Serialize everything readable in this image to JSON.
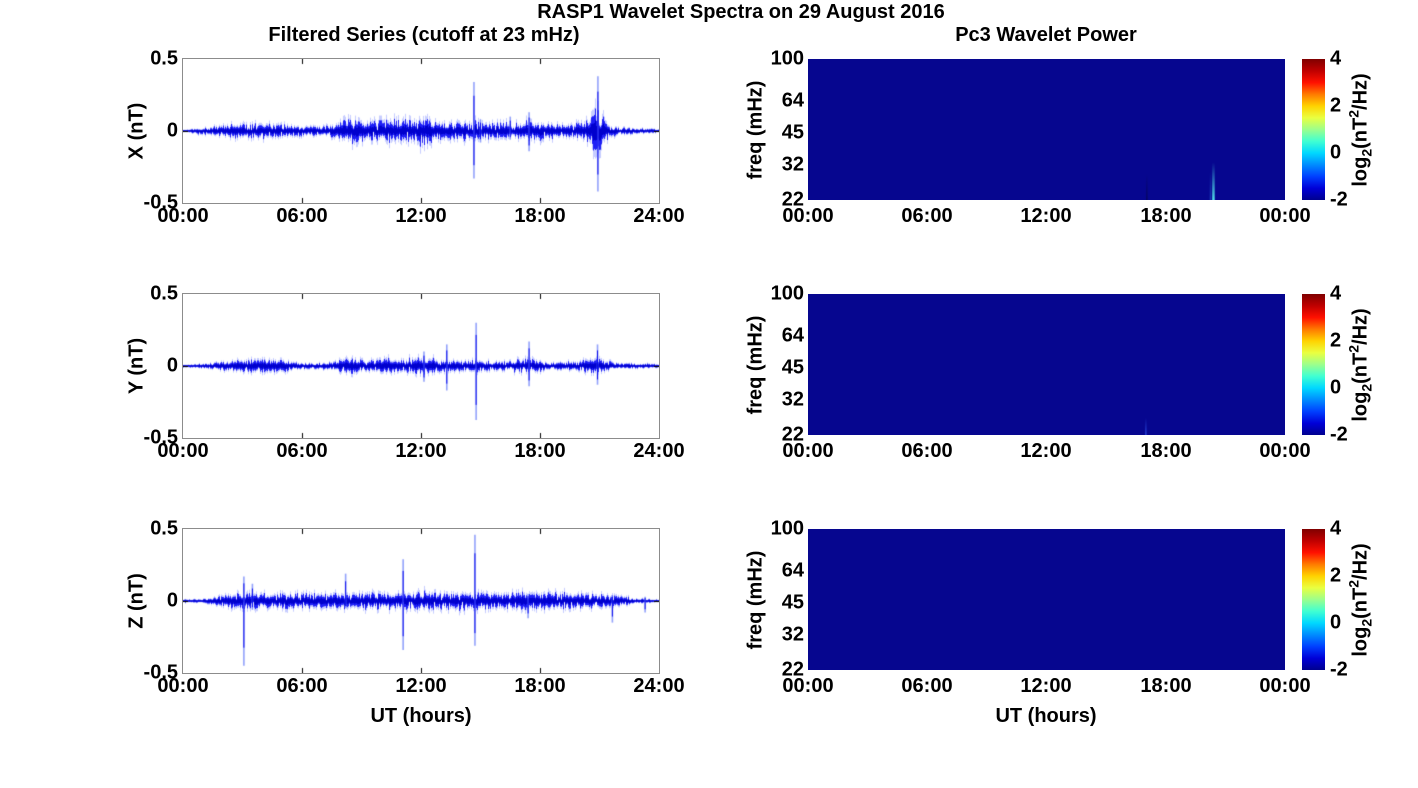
{
  "figure": {
    "title": "RASP1 Wavelet Spectra on 29 August 2016"
  },
  "left_column": {
    "title": "Filtered Series (cutoff at 23 mHz)",
    "xlabel": "UT (hours)",
    "x_ticks": [
      "00:00",
      "06:00",
      "12:00",
      "18:00",
      "24:00"
    ],
    "y_ticks": [
      "0.5",
      "0",
      "-0.5"
    ],
    "panel_ylabels": [
      "X (nT)",
      "Y (nT)",
      "Z (nT)"
    ],
    "series_color": "#0000ee"
  },
  "right_column": {
    "title": "Pc3 Wavelet Power",
    "xlabel": "UT (hours)",
    "x_ticks": [
      "00:00",
      "06:00",
      "12:00",
      "18:00",
      "00:00"
    ],
    "ylabel": "freq (mHz)",
    "freq_ticks": [
      "100",
      "64",
      "45",
      "32",
      "22"
    ],
    "colorbar": {
      "ticks": [
        "4",
        "2",
        "0",
        "-2"
      ],
      "label": {
        "p1": "log",
        "sub": "2",
        "p2": "(nT",
        "sup": "2",
        "p3": "/Hz)"
      },
      "colormap": "jet",
      "gradient_top_to_bottom": [
        "#7f0000",
        "#bf0000",
        "#ff1000",
        "#ff7a00",
        "#ffd200",
        "#eaff40",
        "#9cff8c",
        "#40ffd2",
        "#00d8ff",
        "#008cff",
        "#0040ff",
        "#0000d8",
        "#00008f"
      ]
    }
  },
  "chart_data": [
    {
      "panel": "X filtered series",
      "type": "line",
      "color": "#0000ee",
      "seed": 11,
      "xlim_hours": [
        0,
        24
      ],
      "ylim_nT": [
        -0.5,
        0.5
      ],
      "envelope_t_amp": [
        [
          0,
          0.008
        ],
        [
          0.5,
          0.015
        ],
        [
          1,
          0.022
        ],
        [
          1.8,
          0.03
        ],
        [
          2.6,
          0.045
        ],
        [
          3.3,
          0.05
        ],
        [
          4.2,
          0.048
        ],
        [
          5,
          0.042
        ],
        [
          5.8,
          0.035
        ],
        [
          6.5,
          0.032
        ],
        [
          7.3,
          0.04
        ],
        [
          7.9,
          0.05
        ],
        [
          8.2,
          0.09
        ],
        [
          8.75,
          0.085
        ],
        [
          9.3,
          0.05
        ],
        [
          9.7,
          0.075
        ],
        [
          10.3,
          0.09
        ],
        [
          10.9,
          0.07
        ],
        [
          11.4,
          0.08
        ],
        [
          12,
          0.09
        ],
        [
          12.6,
          0.08
        ],
        [
          13.2,
          0.055
        ],
        [
          14,
          0.06
        ],
        [
          14.7,
          0.065
        ],
        [
          15.3,
          0.055
        ],
        [
          16,
          0.06
        ],
        [
          16.8,
          0.05
        ],
        [
          17.4,
          0.07
        ],
        [
          18,
          0.055
        ],
        [
          18.8,
          0.05
        ],
        [
          19.5,
          0.045
        ],
        [
          20.2,
          0.05
        ],
        [
          20.65,
          0.12
        ],
        [
          20.95,
          0.22
        ],
        [
          21.15,
          0.1
        ],
        [
          21.5,
          0.04
        ],
        [
          22,
          0.025
        ],
        [
          22.8,
          0.018
        ],
        [
          23.5,
          0.015
        ],
        [
          24,
          0.012
        ]
      ],
      "spikes_t_max_min": [
        [
          14.67,
          0.34,
          -0.33
        ],
        [
          15.0,
          0.08,
          -0.08
        ],
        [
          16.5,
          0.1,
          -0.06
        ],
        [
          17.45,
          0.13,
          -0.14
        ],
        [
          20.92,
          0.38,
          -0.42
        ]
      ]
    },
    {
      "panel": "Y filtered series",
      "type": "line",
      "color": "#0000ee",
      "seed": 22,
      "xlim_hours": [
        0,
        24
      ],
      "ylim_nT": [
        -0.5,
        0.5
      ],
      "envelope_t_amp": [
        [
          0,
          0.008
        ],
        [
          0.8,
          0.012
        ],
        [
          1.5,
          0.02
        ],
        [
          2.5,
          0.035
        ],
        [
          3.5,
          0.042
        ],
        [
          4.5,
          0.045
        ],
        [
          5.3,
          0.035
        ],
        [
          6,
          0.02
        ],
        [
          7,
          0.018
        ],
        [
          7.8,
          0.03
        ],
        [
          8.2,
          0.055
        ],
        [
          8.7,
          0.05
        ],
        [
          9.3,
          0.03
        ],
        [
          9.7,
          0.05
        ],
        [
          10.4,
          0.055
        ],
        [
          10.9,
          0.04
        ],
        [
          11.4,
          0.05
        ],
        [
          12,
          0.06
        ],
        [
          12.5,
          0.05
        ],
        [
          13.2,
          0.035
        ],
        [
          14,
          0.035
        ],
        [
          14.8,
          0.04
        ],
        [
          15.6,
          0.03
        ],
        [
          16.5,
          0.028
        ],
        [
          17.2,
          0.05
        ],
        [
          17.8,
          0.045
        ],
        [
          18.4,
          0.03
        ],
        [
          19.2,
          0.025
        ],
        [
          20,
          0.03
        ],
        [
          20.6,
          0.045
        ],
        [
          21,
          0.05
        ],
        [
          21.4,
          0.03
        ],
        [
          22,
          0.02
        ],
        [
          23,
          0.015
        ],
        [
          24,
          0.012
        ]
      ],
      "spikes_t_max_min": [
        [
          12.15,
          0.1,
          -0.11
        ],
        [
          13.3,
          0.15,
          -0.17
        ],
        [
          14.78,
          0.3,
          -0.375
        ],
        [
          17.45,
          0.17,
          -0.14
        ],
        [
          20.9,
          0.15,
          -0.13
        ]
      ]
    },
    {
      "panel": "Z filtered series",
      "type": "line",
      "color": "#0000ee",
      "seed": 33,
      "xlim_hours": [
        0,
        24
      ],
      "ylim_nT": [
        -0.5,
        0.5
      ],
      "envelope_t_amp": [
        [
          0,
          0.01
        ],
        [
          0.6,
          0.012
        ],
        [
          0.9,
          0.008
        ],
        [
          1.3,
          0.02
        ],
        [
          2,
          0.04
        ],
        [
          2.6,
          0.05
        ],
        [
          3.2,
          0.052
        ],
        [
          4,
          0.05
        ],
        [
          5,
          0.05
        ],
        [
          6,
          0.048
        ],
        [
          7,
          0.05
        ],
        [
          8,
          0.05
        ],
        [
          9,
          0.05
        ],
        [
          10,
          0.055
        ],
        [
          11,
          0.055
        ],
        [
          12,
          0.058
        ],
        [
          13,
          0.055
        ],
        [
          14,
          0.055
        ],
        [
          15,
          0.055
        ],
        [
          16,
          0.05
        ],
        [
          17,
          0.055
        ],
        [
          18,
          0.055
        ],
        [
          19,
          0.055
        ],
        [
          20,
          0.05
        ],
        [
          20.8,
          0.048
        ],
        [
          21.5,
          0.045
        ],
        [
          22,
          0.04
        ],
        [
          22.4,
          0.03
        ],
        [
          22.8,
          0.015
        ],
        [
          23.5,
          0.012
        ],
        [
          24,
          0.01
        ]
      ],
      "spikes_t_max_min": [
        [
          3.07,
          0.17,
          -0.45
        ],
        [
          3.5,
          0.12,
          -0.06
        ],
        [
          8.2,
          0.19,
          -0.05
        ],
        [
          11.1,
          0.29,
          -0.34
        ],
        [
          14.72,
          0.46,
          -0.31
        ],
        [
          17.4,
          0.05,
          -0.12
        ],
        [
          21.65,
          0.04,
          -0.15
        ],
        [
          23.3,
          0.03,
          -0.08
        ]
      ]
    },
    {
      "panel": "X Pc3 wavelet power",
      "type": "heatmap",
      "bg_color": "#06068f",
      "xlim_hours": [
        0,
        24
      ],
      "freq_mhz": [
        22,
        100
      ],
      "clim_log2": [
        -2,
        4
      ],
      "background_value_log2": -2,
      "features": [
        {
          "t": 20.4,
          "f_low": 22,
          "f_high": 33,
          "color": "#55eeee",
          "alpha": 0.95,
          "width": 2.5
        },
        {
          "t": 20.25,
          "f_low": 22,
          "f_high": 30,
          "color": "#2a6ae0",
          "alpha": 0.5,
          "width": 1.5
        },
        {
          "t": 17.05,
          "f_low": 22,
          "f_high": 29,
          "color": "#05053f",
          "alpha": 0.6,
          "width": 1.5
        }
      ]
    },
    {
      "panel": "Y Pc3 wavelet power",
      "type": "heatmap",
      "bg_color": "#06068f",
      "xlim_hours": [
        0,
        24
      ],
      "freq_mhz": [
        22,
        100
      ],
      "clim_log2": [
        -2,
        4
      ],
      "background_value_log2": -2,
      "features": [
        {
          "t": 17.0,
          "f_low": 22,
          "f_high": 26.5,
          "color": "#2d50e6",
          "alpha": 0.85,
          "width": 1.5
        }
      ]
    },
    {
      "panel": "Z Pc3 wavelet power",
      "type": "heatmap",
      "bg_color": "#06068f",
      "xlim_hours": [
        0,
        24
      ],
      "freq_mhz": [
        22,
        100
      ],
      "clim_log2": [
        -2,
        4
      ],
      "background_value_log2": -2,
      "features": []
    }
  ]
}
